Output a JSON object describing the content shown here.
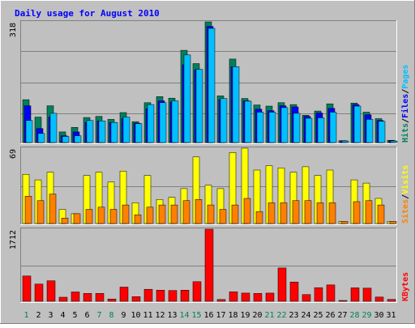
{
  "title": "Daily usage for August 2010",
  "colors": {
    "background": "#C0C0C0",
    "title": "#0000FF",
    "hits": "#00805C",
    "files": "#0000FF",
    "pages": "#00C0FF",
    "visits": "#FFFF00",
    "sites": "#FF8000",
    "kbytes": "#FF0000",
    "weekend_day": "#00805C",
    "weekday": "#000000"
  },
  "chart_data": [
    {
      "type": "bar",
      "name": "hits-files-pages",
      "ymax_label": "318",
      "ylim": [
        0,
        318
      ],
      "x": [
        "1",
        "2",
        "3",
        "4",
        "5",
        "6",
        "7",
        "8",
        "9",
        "10",
        "11",
        "12",
        "13",
        "14",
        "15",
        "16",
        "17",
        "18",
        "19",
        "20",
        "21",
        "22",
        "23",
        "24",
        "25",
        "26",
        "27",
        "28",
        "29",
        "30",
        "31"
      ],
      "legend": [
        {
          "text": "Hits",
          "color": "#00805C"
        },
        {
          "text": "Files",
          "color": "#0000FF"
        },
        {
          "text": "Pages",
          "color": "#00C0FF"
        }
      ],
      "separators": [
        "/",
        "/"
      ],
      "series": [
        {
          "name": "Hits",
          "color": "#00805C",
          "values": [
            113,
            67,
            97,
            28,
            40,
            66,
            69,
            61,
            79,
            55,
            105,
            121,
            117,
            243,
            208,
            318,
            123,
            220,
            116,
            99,
            96,
            105,
            100,
            72,
            83,
            102,
            5,
            104,
            80,
            63,
            6
          ]
        },
        {
          "name": "Files",
          "color": "#0000FF",
          "values": [
            97,
            37,
            67,
            18,
            28,
            53,
            57,
            53,
            63,
            51,
            89,
            110,
            107,
            205,
            192,
            306,
            113,
            200,
            110,
            88,
            84,
            97,
            94,
            69,
            78,
            90,
            5,
            100,
            73,
            58,
            5
          ]
        },
        {
          "name": "Pages",
          "color": "#00C0FF",
          "values": [
            58,
            24,
            77,
            16,
            18,
            58,
            57,
            53,
            67,
            50,
            100,
            105,
            110,
            231,
            193,
            301,
            116,
            200,
            109,
            80,
            80,
            92,
            77,
            64,
            65,
            80,
            4,
            96,
            61,
            56,
            4
          ]
        }
      ]
    },
    {
      "type": "bar",
      "name": "visits-sites",
      "ymax_label": "69",
      "ylim": [
        0,
        69
      ],
      "x": [
        "1",
        "2",
        "3",
        "4",
        "5",
        "6",
        "7",
        "8",
        "9",
        "10",
        "11",
        "12",
        "13",
        "14",
        "15",
        "16",
        "17",
        "18",
        "19",
        "20",
        "21",
        "22",
        "23",
        "24",
        "25",
        "26",
        "27",
        "28",
        "29",
        "30",
        "31"
      ],
      "legend": [
        {
          "text": "Sites",
          "color": "#FF8000"
        },
        {
          "text": "Visits",
          "color": "#FFFF00"
        }
      ],
      "separators": [
        "/"
      ],
      "series": [
        {
          "name": "Visits",
          "color": "#FFFF00",
          "values": [
            45,
            40,
            47,
            13,
            9,
            44,
            47,
            38,
            48,
            19,
            44,
            22,
            24,
            32,
            61,
            35,
            32,
            65,
            69,
            49,
            53,
            51,
            47,
            52,
            44,
            49,
            2,
            40,
            37,
            23,
            2
          ]
        },
        {
          "name": "Sites",
          "color": "#FF8000",
          "values": [
            25,
            21,
            27,
            5,
            9,
            13,
            15,
            13,
            17,
            8,
            15,
            17,
            17,
            21,
            22,
            17,
            13,
            17,
            23,
            11,
            19,
            19,
            21,
            21,
            19,
            19,
            2,
            20,
            21,
            17,
            2
          ]
        }
      ]
    },
    {
      "type": "bar",
      "name": "kbytes",
      "ymax_label": "1712",
      "ylim": [
        0,
        1712
      ],
      "x": [
        "1",
        "2",
        "3",
        "4",
        "5",
        "6",
        "7",
        "8",
        "9",
        "10",
        "11",
        "12",
        "13",
        "14",
        "15",
        "16",
        "17",
        "18",
        "19",
        "20",
        "21",
        "22",
        "23",
        "24",
        "25",
        "26",
        "27",
        "28",
        "29",
        "30",
        "31"
      ],
      "legend": [
        {
          "text": "KBytes",
          "color": "#FF0000"
        }
      ],
      "series": [
        {
          "name": "KBytes",
          "color": "#FF0000",
          "values": [
            601,
            407,
            487,
            97,
            222,
            187,
            187,
            54,
            337,
            110,
            285,
            263,
            256,
            263,
            465,
            1712,
            43,
            226,
            195,
            187,
            195,
            790,
            457,
            160,
            323,
            389,
            20,
            320,
            312,
            100,
            44
          ]
        }
      ]
    }
  ],
  "weekend_days": [
    1,
    7,
    8,
    14,
    15,
    21,
    22,
    28,
    29
  ]
}
